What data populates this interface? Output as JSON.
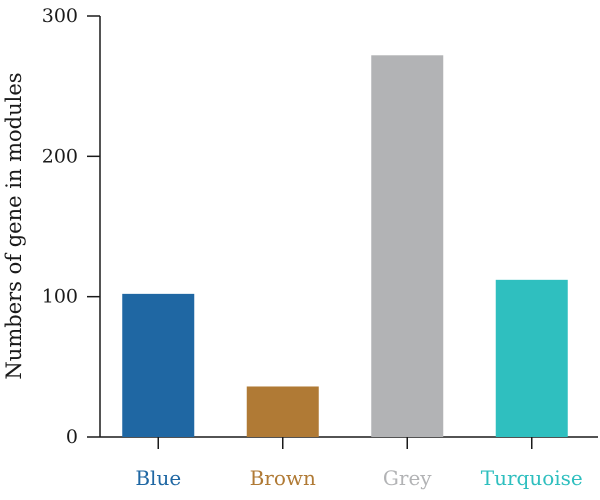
{
  "chart_data": {
    "type": "bar",
    "title": "",
    "xlabel": "",
    "ylabel": "Numbers of gene in modules",
    "ylim": [
      0,
      300
    ],
    "yticks": [
      0,
      100,
      200,
      300
    ],
    "grid": false,
    "categories": [
      "Blue",
      "Brown",
      "Grey",
      "Turquoise"
    ],
    "values": [
      102,
      36,
      272,
      112
    ],
    "colors": [
      "#1f67a3",
      "#b07a35",
      "#b2b3b5",
      "#2fbfbf"
    ]
  }
}
